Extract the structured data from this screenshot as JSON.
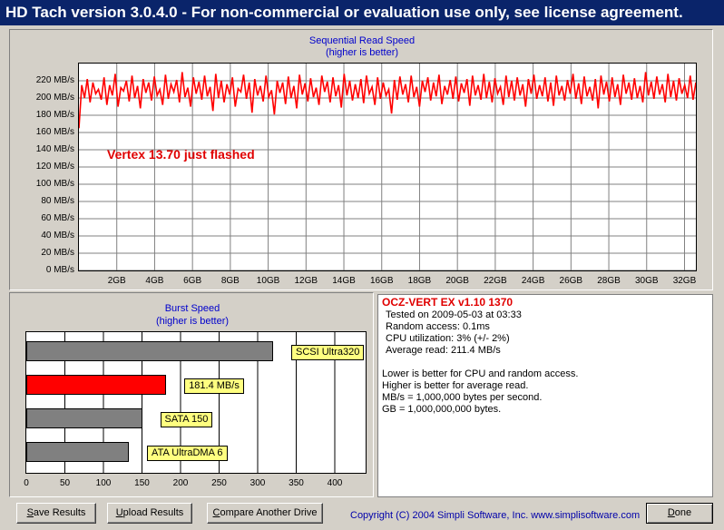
{
  "window": {
    "title": "HD Tach version 3.0.4.0  - For non-commercial or evaluation use only, see license agreement."
  },
  "sequential": {
    "title": "Sequential Read Speed",
    "subtitle": "(higher is better)",
    "annotation": "Vertex 13.70 just flashed",
    "line_color": "#ff0000"
  },
  "burst": {
    "title": "Burst Speed",
    "subtitle": "(higher is better)"
  },
  "info": {
    "drive": "OCZ-VERT EX v1.10 1370",
    "tested": "Tested on 2009-05-03 at 03:33",
    "random_access": "Random access: 0.1ms",
    "cpu": "CPU utilization: 3% (+/- 2%)",
    "avg_read": "Average read: 211.4 MB/s",
    "notes": [
      "Lower is better for CPU and random access.",
      "Higher is better for average read.",
      "MB/s = 1,000,000 bytes per second.",
      "GB = 1,000,000,000 bytes."
    ]
  },
  "buttons": {
    "save": {
      "u": "S",
      "rest": "ave Results"
    },
    "upload": {
      "u": "U",
      "rest": "pload Results"
    },
    "compare": {
      "u": "C",
      "rest": "ompare Another Drive"
    },
    "done": {
      "u": "D",
      "rest": "one"
    }
  },
  "copyright": "Copyright (C) 2004 Simpli Software, Inc. www.simplisoftware.com",
  "chart_data": [
    {
      "type": "line",
      "title": "Sequential Read Speed",
      "subtitle": "(higher is better)",
      "xlabel": "",
      "ylabel": "",
      "xlim": [
        0,
        32.6
      ],
      "ylim": [
        0,
        240
      ],
      "y_ticks": [
        "0 MB/s",
        "20 MB/s",
        "40 MB/s",
        "60 MB/s",
        "80 MB/s",
        "100 MB/s",
        "120 MB/s",
        "140 MB/s",
        "160 MB/s",
        "180 MB/s",
        "200 MB/s",
        "220 MB/s"
      ],
      "x_ticks": [
        "2GB",
        "4GB",
        "6GB",
        "8GB",
        "10GB",
        "12GB",
        "14GB",
        "16GB",
        "18GB",
        "20GB",
        "22GB",
        "24GB",
        "26GB",
        "28GB",
        "30GB",
        "32GB"
      ],
      "grid": true,
      "series": [
        {
          "values": [
            165,
            215,
            200,
            222,
            195,
            218,
            205,
            210,
            198,
            224,
            192,
            215,
            203,
            228,
            190,
            212,
            208,
            220,
            196,
            226,
            200,
            214,
            188,
            222,
            206,
            218,
            197,
            225,
            203,
            210,
            192,
            227,
            199,
            216,
            207,
            221,
            195,
            230,
            201,
            212,
            190,
            224,
            205,
            219,
            198,
            226,
            202,
            213,
            185,
            228,
            200,
            220,
            195,
            216,
            204,
            224,
            190,
            211,
            207,
            227,
            199,
            218,
            183,
            222,
            203,
            214,
            196,
            226,
            201,
            209,
            181,
            220,
            206,
            218,
            193,
            225,
            200,
            214,
            188,
            227,
            204,
            217,
            196,
            223,
            201,
            212,
            192,
            226,
            207,
            219,
            195,
            224,
            202,
            215,
            189,
            228,
            203,
            220,
            197,
            216,
            200,
            222,
            194,
            226,
            205,
            213,
            192,
            224,
            199,
            218,
            203,
            210,
            182,
            221,
            198,
            225,
            204,
            216,
            195,
            226,
            201,
            213,
            190,
            220,
            207,
            224,
            197,
            218,
            202,
            227,
            193,
            214,
            204,
            221,
            199,
            225,
            196,
            217,
            206,
            222,
            191,
            226,
            203,
            215,
            198,
            228,
            200,
            219,
            195,
            223,
            205,
            213,
            192,
            226,
            201,
            220,
            197,
            224,
            203,
            216,
            190,
            222,
            205,
            227,
            199,
            215,
            202,
            224,
            196,
            218,
            191,
            226,
            203,
            214,
            197,
            221,
            205,
            228,
            199,
            217,
            193,
            225,
            202,
            213,
            197,
            222,
            188,
            226,
            204,
            219,
            196,
            224,
            201,
            216,
            192,
            227,
            205,
            218,
            198,
            223,
            200,
            214,
            195,
            230,
            203,
            219,
            199,
            225,
            204,
            216,
            195,
            228,
            201,
            220,
            197,
            223,
            205,
            215,
            200,
            226,
            198,
            218
          ]
        }
      ]
    },
    {
      "type": "bar",
      "title": "Burst Speed",
      "subtitle": "(higher is better)",
      "xlabel": "",
      "ylabel": "",
      "xlim": [
        0,
        440
      ],
      "x_ticks": [
        0,
        50,
        100,
        150,
        200,
        250,
        300,
        350,
        400
      ],
      "categories": [
        "SCSI Ultra320",
        "181.4 MB/s",
        "SATA 150",
        "ATA UltraDMA 6"
      ],
      "values": [
        320,
        181.4,
        150,
        133
      ],
      "colors": [
        "#808080",
        "#ff0000",
        "#808080",
        "#808080"
      ]
    }
  ]
}
